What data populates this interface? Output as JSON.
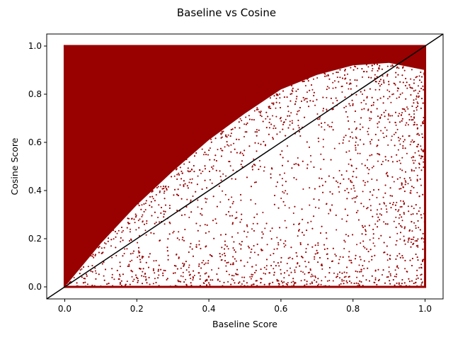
{
  "chart_data": {
    "type": "scatter",
    "title": "Baseline vs Cosine",
    "xlabel": "Baseline Score",
    "ylabel": "Cosine Score",
    "xlim": [
      -0.05,
      1.05
    ],
    "ylim": [
      -0.05,
      1.05
    ],
    "xticks": [
      0.0,
      0.2,
      0.4,
      0.6,
      0.8,
      1.0
    ],
    "yticks": [
      0.0,
      0.2,
      0.4,
      0.6,
      0.8,
      1.0
    ],
    "xtick_labels": [
      "0.0",
      "0.2",
      "0.4",
      "0.6",
      "0.8",
      "1.0"
    ],
    "ytick_labels": [
      "0.0",
      "0.2",
      "0.4",
      "0.6",
      "0.8",
      "1.0"
    ],
    "grid": false,
    "legend": "none",
    "point_color": "#990000",
    "reference_line": {
      "x": [
        -0.05,
        1.05
      ],
      "y": [
        -0.05,
        1.05
      ],
      "color": "#000000"
    },
    "dense_regions": [
      {
        "x": [
          0.0,
          1.0
        ],
        "y": [
          1.0,
          1.0
        ]
      },
      {
        "x": [
          0.0,
          0.0
        ],
        "y": [
          0.0,
          1.0
        ]
      },
      {
        "x": [
          1.0,
          1.0
        ],
        "y": [
          0.0,
          1.0
        ]
      },
      {
        "x": [
          0.0,
          1.0
        ],
        "y": [
          0.0,
          0.0
        ]
      }
    ],
    "dense_boundary": {
      "x": [
        0.0,
        0.1,
        0.2,
        0.3,
        0.4,
        0.5,
        0.6,
        0.7,
        0.8,
        0.9,
        1.0
      ],
      "y": [
        0.0,
        0.18,
        0.34,
        0.48,
        0.61,
        0.72,
        0.82,
        0.88,
        0.92,
        0.93,
        0.9
      ]
    }
  }
}
